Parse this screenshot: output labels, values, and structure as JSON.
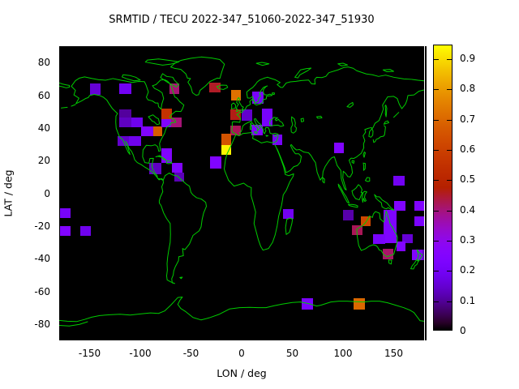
{
  "title": "SRMTID / TECU 2022-347_51060-2022-347_51930",
  "chart_data": {
    "type": "heatmap",
    "title": "SRMTID / TECU 2022-347_51060-2022-347_51930",
    "xlabel": "LON / deg",
    "ylabel": "LAT / deg",
    "xlim": [
      -180,
      180
    ],
    "ylim": [
      -90,
      90
    ],
    "xticks": [
      -150,
      -100,
      -50,
      0,
      50,
      100,
      150
    ],
    "yticks": [
      80,
      60,
      40,
      20,
      0,
      -20,
      -40,
      -60,
      -80
    ],
    "grid": false,
    "background_color": "#000000",
    "coastline_color": "#00cc00",
    "colorbar": {
      "min": 0,
      "max": 0.945,
      "ticks": [
        0,
        0.1,
        0.2,
        0.3,
        0.4,
        0.5,
        0.6,
        0.7,
        0.8,
        0.9
      ],
      "palette": "gnuplot pm3d rgbformulae 7,5,15 (black-violet-red-orange-yellow)",
      "position": "right"
    },
    "cells": [
      {
        "lon": [
          -150,
          -139
        ],
        "lat": [
          60,
          67
        ],
        "v": 0.15
      },
      {
        "lon": [
          -120.5,
          -109
        ],
        "lat": [
          60.5,
          67
        ],
        "v": 0.19
      },
      {
        "lon": [
          -71,
          -61.5
        ],
        "lat": [
          60.5,
          67
        ],
        "v": 0.4
      },
      {
        "lon": [
          -32,
          -20.5
        ],
        "lat": [
          61.5,
          67.5
        ],
        "v": 0.45
      },
      {
        "lon": [
          -10.5,
          -0.5
        ],
        "lat": [
          57,
          63
        ],
        "v": 0.72
      },
      {
        "lon": [
          10,
          21.5
        ],
        "lat": [
          55,
          62
        ],
        "v": 0.21
      },
      {
        "lon": [
          -11,
          -0.5
        ],
        "lat": [
          45,
          51.5
        ],
        "v": 0.46
      },
      {
        "lon": [
          0,
          10.5
        ],
        "lat": [
          44.5,
          51.5
        ],
        "v": 0.14
      },
      {
        "lon": [
          20,
          30.5
        ],
        "lat": [
          41,
          52
        ],
        "v": 0.21
      },
      {
        "lon": [
          -11,
          -0.5
        ],
        "lat": [
          35.5,
          41.5
        ],
        "v": 0.42
      },
      {
        "lon": [
          9.5,
          21
        ],
        "lat": [
          35.5,
          42
        ],
        "v": 0.24
      },
      {
        "lon": [
          30.5,
          40
        ],
        "lat": [
          29.5,
          36
        ],
        "v": 0.21
      },
      {
        "lon": [
          -20,
          -10.5
        ],
        "lat": [
          29.5,
          36.5
        ],
        "v": 0.65
      },
      {
        "lon": [
          -20,
          -10.5
        ],
        "lat": [
          23.5,
          29.5
        ],
        "v": 0.93
      },
      {
        "lon": [
          -31.5,
          -20
        ],
        "lat": [
          15,
          22.5
        ],
        "v": 0.24
      },
      {
        "lon": [
          -120.5,
          -109
        ],
        "lat": [
          46.3,
          51.3
        ],
        "v": 0.1
      },
      {
        "lon": [
          -120.5,
          -109
        ],
        "lat": [
          40.5,
          46.3
        ],
        "v": 0.13
      },
      {
        "lon": [
          -109,
          -98
        ],
        "lat": [
          40.5,
          46.5
        ],
        "v": 0.18
      },
      {
        "lon": [
          -99,
          -87.5
        ],
        "lat": [
          35,
          41
        ],
        "v": 0.24
      },
      {
        "lon": [
          -87.5,
          -78.5
        ],
        "lat": [
          35,
          41
        ],
        "v": 0.67
      },
      {
        "lon": [
          -79,
          -69
        ],
        "lat": [
          45.5,
          52
        ],
        "v": 0.55
      },
      {
        "lon": [
          -79.5,
          -68
        ],
        "lat": [
          40.5,
          45.5
        ],
        "v": 0.24
      },
      {
        "lon": [
          -69.5,
          -59
        ],
        "lat": [
          40.5,
          46.5
        ],
        "v": 0.4
      },
      {
        "lon": [
          -122.5,
          -111.5
        ],
        "lat": [
          29,
          35
        ],
        "v": 0.14
      },
      {
        "lon": [
          -111.5,
          -99
        ],
        "lat": [
          29,
          35
        ],
        "v": 0.18
      },
      {
        "lon": [
          -79,
          -69
        ],
        "lat": [
          18.5,
          27.5
        ],
        "v": 0.24
      },
      {
        "lon": [
          -69,
          -58.5
        ],
        "lat": [
          12.5,
          18.5
        ],
        "v": 0.24
      },
      {
        "lon": [
          -66.5,
          -56.5
        ],
        "lat": [
          7,
          12.5
        ],
        "v": 0.12
      },
      {
        "lon": [
          -91.5,
          -79.5
        ],
        "lat": [
          11.5,
          18.5
        ],
        "v": 0.13
      },
      {
        "lon": [
          -179,
          -168.5
        ],
        "lat": [
          -15,
          -9.3
        ],
        "v": 0.21
      },
      {
        "lon": [
          -179,
          -168.5
        ],
        "lat": [
          -26,
          -20
        ],
        "v": 0.24
      },
      {
        "lon": [
          -159,
          -148.5
        ],
        "lat": [
          -26,
          -20
        ],
        "v": 0.18
      },
      {
        "lon": [
          40.5,
          51
        ],
        "lat": [
          -15.5,
          -9.8
        ],
        "v": 0.19
      },
      {
        "lon": [
          91,
          100.5
        ],
        "lat": [
          24.5,
          31
        ],
        "v": 0.24
      },
      {
        "lon": [
          100,
          110.5
        ],
        "lat": [
          -16.5,
          -10.3
        ],
        "v": 0.11
      },
      {
        "lon": [
          117.5,
          127.5
        ],
        "lat": [
          -20.2,
          -14.3
        ],
        "v": 0.62
      },
      {
        "lon": [
          109,
          119
        ],
        "lat": [
          -25.6,
          -19.8
        ],
        "v": 0.42
      },
      {
        "lon": [
          140,
          152.5
        ],
        "lat": [
          -30.6,
          -10.4
        ],
        "v": 0.23
      },
      {
        "lon": [
          129.5,
          141.5
        ],
        "lat": [
          -31,
          -24.9
        ],
        "v": 0.21
      },
      {
        "lon": [
          158.5,
          169
        ],
        "lat": [
          -30.5,
          -24.9
        ],
        "v": 0.15
      },
      {
        "lon": [
          152.5,
          161.5
        ],
        "lat": [
          -35.7,
          -29.7
        ],
        "v": 0.24
      },
      {
        "lon": [
          139,
          149.5
        ],
        "lat": [
          -40.5,
          -33.9
        ],
        "v": 0.41
      },
      {
        "lon": [
          149.5,
          160.5
        ],
        "lat": [
          4.9,
          10.7
        ],
        "v": 0.19
      },
      {
        "lon": [
          150,
          161.5
        ],
        "lat": [
          -10.7,
          -4.9
        ],
        "v": 0.24
      },
      {
        "lon": [
          170,
          180.5
        ],
        "lat": [
          -10.9,
          -4.9
        ],
        "v": 0.24
      },
      {
        "lon": [
          170,
          180.5
        ],
        "lat": [
          -20.2,
          -14.3
        ],
        "v": 0.22
      },
      {
        "lon": [
          168,
          178
        ],
        "lat": [
          -40.8,
          -34.6
        ],
        "v": 0.24
      },
      {
        "lon": [
          178,
          184
        ],
        "lat": [
          -40.8,
          -34.6
        ],
        "v": 0.12
      },
      {
        "lon": [
          59,
          70.5
        ],
        "lat": [
          -71,
          -64.4
        ],
        "v": 0.22
      },
      {
        "lon": [
          110,
          121.5
        ],
        "lat": [
          -71,
          -64.4
        ],
        "v": 0.7
      }
    ]
  }
}
